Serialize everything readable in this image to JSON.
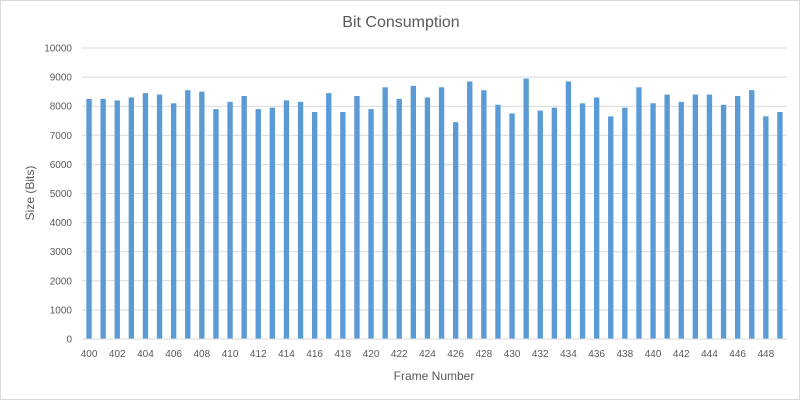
{
  "chart_data": {
    "type": "bar",
    "title": "Bit Consumption",
    "xlabel": "Frame Number",
    "ylabel": "Size (Bits)",
    "ylim": [
      0,
      10000
    ],
    "yticks": [
      0,
      1000,
      2000,
      3000,
      4000,
      5000,
      6000,
      7000,
      8000,
      9000,
      10000
    ],
    "grid": true,
    "bar_color": "#5b9bd5",
    "categories": [
      400,
      401,
      402,
      403,
      404,
      405,
      406,
      407,
      408,
      409,
      410,
      411,
      412,
      413,
      414,
      415,
      416,
      417,
      418,
      419,
      420,
      421,
      422,
      423,
      424,
      425,
      426,
      427,
      428,
      429,
      430,
      431,
      432,
      433,
      434,
      435,
      436,
      437,
      438,
      439,
      440,
      441,
      442,
      443,
      444,
      445,
      446,
      447,
      448,
      449
    ],
    "x_tick_labels": [
      "400",
      "402",
      "404",
      "406",
      "408",
      "410",
      "412",
      "414",
      "416",
      "418",
      "420",
      "422",
      "424",
      "426",
      "428",
      "430",
      "432",
      "434",
      "436",
      "438",
      "440",
      "442",
      "444",
      "446",
      "448"
    ],
    "values": [
      8250,
      8250,
      8200,
      8300,
      8450,
      8400,
      8100,
      8550,
      8500,
      7900,
      8150,
      8350,
      7900,
      7950,
      8200,
      8150,
      7800,
      8450,
      7800,
      8350,
      7900,
      8650,
      8250,
      8700,
      8300,
      8650,
      7450,
      8850,
      8550,
      8050,
      7750,
      8950,
      7850,
      7950,
      8850,
      8100,
      8300,
      7650,
      7950,
      8650,
      8100,
      8400,
      8150,
      8400,
      8400,
      8050,
      8350,
      8550,
      7650,
      7800
    ]
  }
}
